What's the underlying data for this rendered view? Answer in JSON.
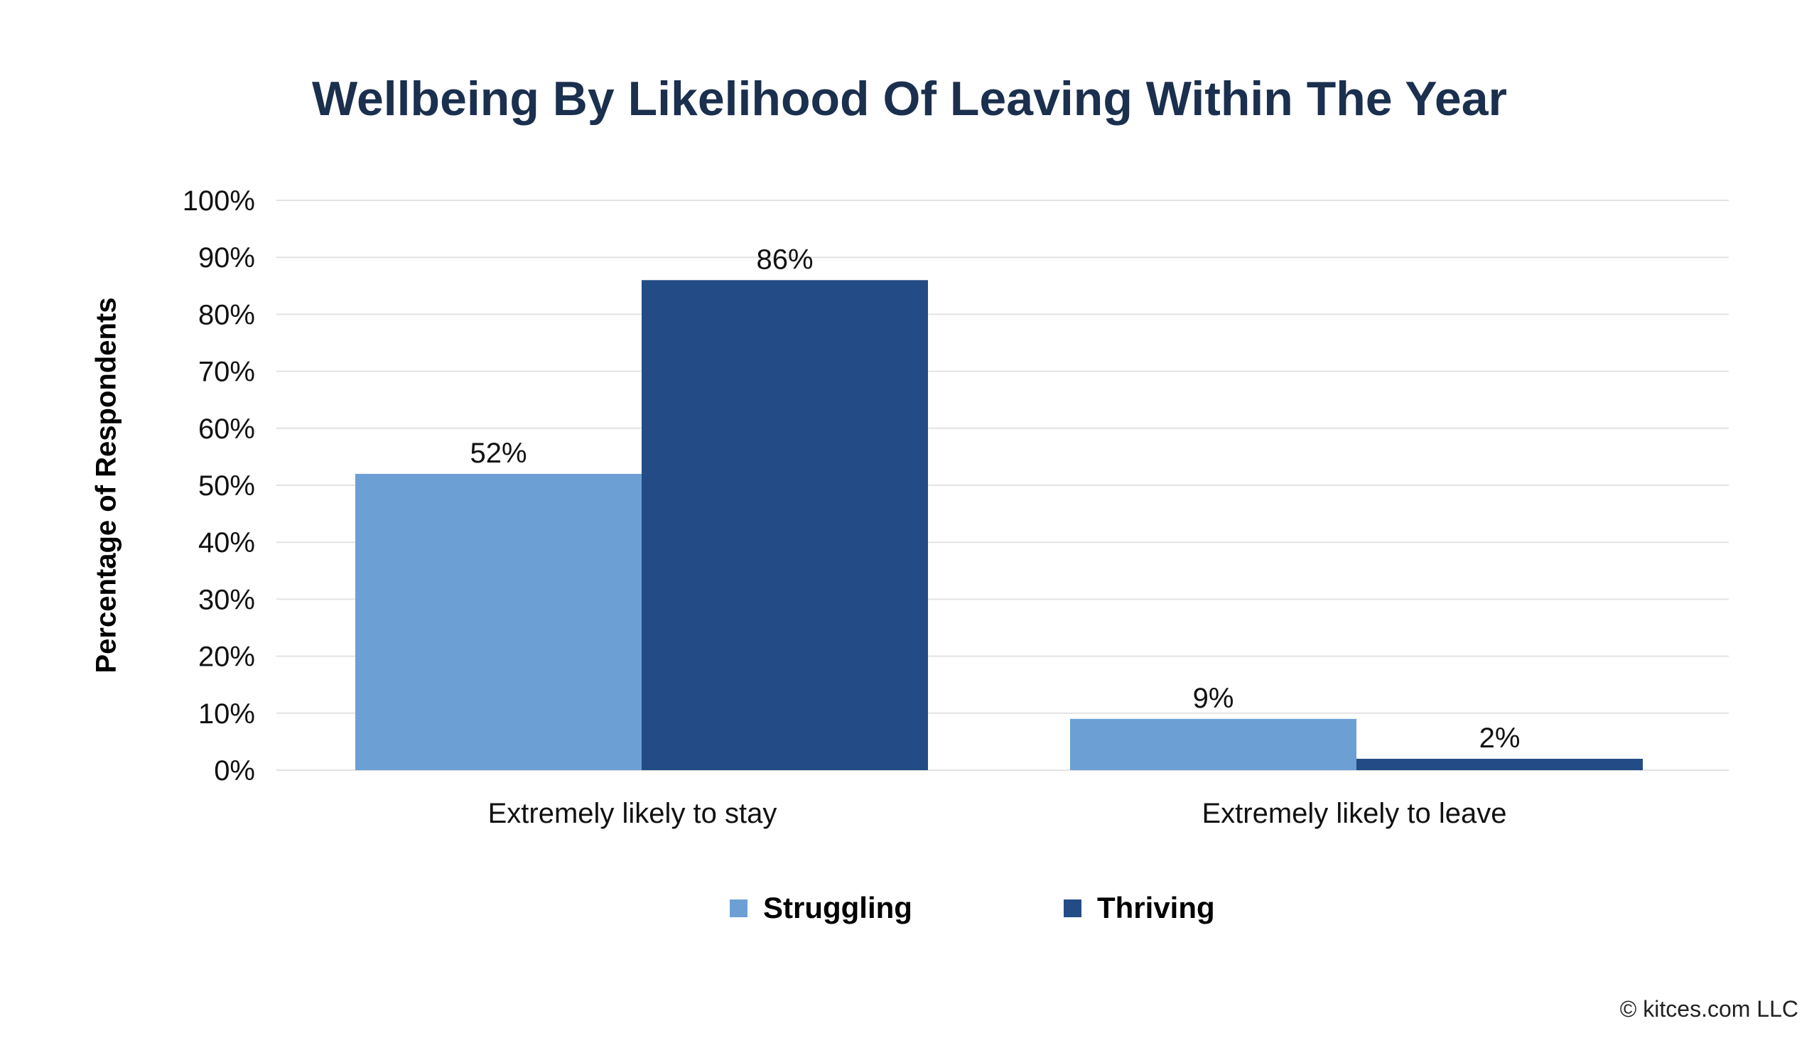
{
  "chart_data": {
    "type": "bar",
    "title": "Wellbeing By Likelihood Of Leaving Within The Year",
    "xlabel": "",
    "ylabel": "Percentage of Respondents",
    "ylim": [
      0,
      100
    ],
    "yticks": [
      "0%",
      "10%",
      "20%",
      "30%",
      "40%",
      "50%",
      "60%",
      "70%",
      "80%",
      "90%",
      "100%"
    ],
    "grid": true,
    "legend_position": "bottom",
    "categories": [
      "Extremely likely to stay",
      "Extremely likely to leave"
    ],
    "series": [
      {
        "name": "Struggling",
        "color": "#6ca0d4",
        "values": [
          52,
          9
        ],
        "labels": [
          "52%",
          "9%"
        ]
      },
      {
        "name": "Thriving",
        "color": "#234c86",
        "values": [
          86,
          2
        ],
        "labels": [
          "86%",
          "2%"
        ]
      }
    ]
  },
  "footer": {
    "copyright": "© kitces.com LLC"
  }
}
